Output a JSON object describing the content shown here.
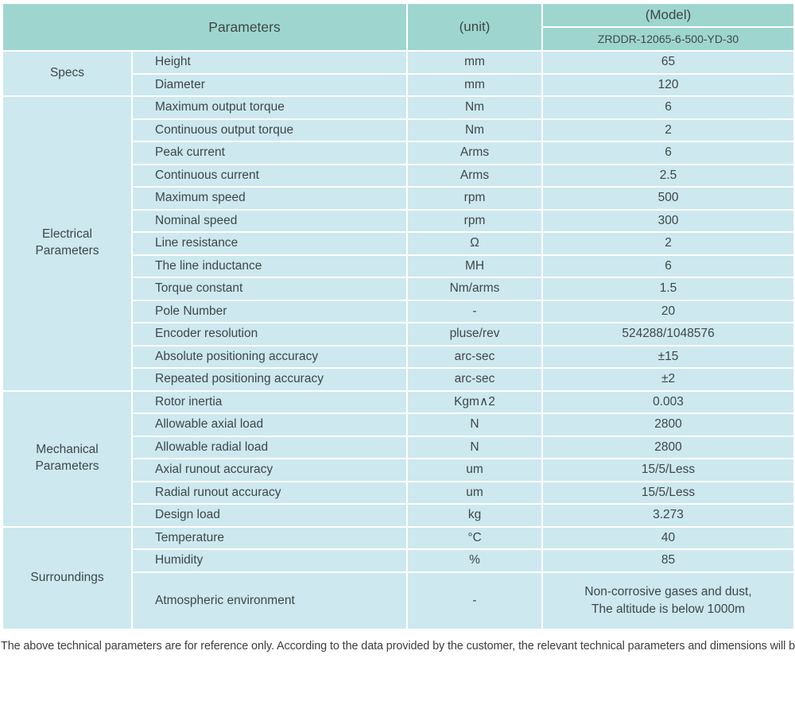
{
  "colors": {
    "header_bg": "#9ed6cf",
    "row_bg": "#cde8ef",
    "grid": "#ffffff",
    "text": "#3e4748"
  },
  "header": {
    "parameters_label": "Parameters",
    "unit_label": "(unit)",
    "model_label": "(Model)",
    "model_value": "ZRDDR-12065-6-500-YD-30"
  },
  "sections": [
    {
      "group": "Specs",
      "rows": [
        {
          "param": "Height",
          "unit": "mm",
          "value": "65"
        },
        {
          "param": "Diameter",
          "unit": "mm",
          "value": "120"
        }
      ]
    },
    {
      "group": "Electrical\nParameters",
      "rows": [
        {
          "param": "Maximum output torque",
          "unit": "Nm",
          "value": "6"
        },
        {
          "param": "Continuous output torque",
          "unit": "Nm",
          "value": "2"
        },
        {
          "param": "Peak current",
          "unit": "Arms",
          "value": "6"
        },
        {
          "param": "Continuous current",
          "unit": "Arms",
          "value": "2.5"
        },
        {
          "param": "Maximum speed",
          "unit": "rpm",
          "value": "500"
        },
        {
          "param": "Nominal speed",
          "unit": "rpm",
          "value": "300"
        },
        {
          "param": "Line resistance",
          "unit": "Ω",
          "value": "2"
        },
        {
          "param": "The line inductance",
          "unit": "MH",
          "value": "6"
        },
        {
          "param": "Torque constant",
          "unit": "Nm/arms",
          "value": "1.5"
        },
        {
          "param": "Pole Number",
          "unit": "-",
          "value": "20"
        },
        {
          "param": "Encoder resolution",
          "unit": "pluse/rev",
          "value": "524288/1048576"
        },
        {
          "param": "Absolute positioning accuracy",
          "unit": "arc-sec",
          "value": "±15"
        },
        {
          "param": "Repeated positioning accuracy",
          "unit": "arc-sec",
          "value": "±2"
        }
      ]
    },
    {
      "group": "Mechanical\nParameters",
      "rows": [
        {
          "param": "Rotor inertia",
          "unit": "Kgm∧2",
          "value": "0.003"
        },
        {
          "param": "Allowable axial load",
          "unit": "N",
          "value": "2800"
        },
        {
          "param": "Allowable radial load",
          "unit": "N",
          "value": "2800"
        },
        {
          "param": "Axial runout accuracy",
          "unit": "um",
          "value": "15/5/Less"
        },
        {
          "param": "Radial runout accuracy",
          "unit": "um",
          "value": "15/5/Less"
        },
        {
          "param": "Design load",
          "unit": "kg",
          "value": "3.273"
        }
      ]
    },
    {
      "group": "Surroundings",
      "rows": [
        {
          "param": "Temperature",
          "unit": "°C",
          "value": "40"
        },
        {
          "param": "Humidity",
          "unit": "%",
          "value": "85"
        },
        {
          "param": "Atmospheric environment",
          "unit": "-",
          "value": "Non-corrosive gases and dust,\nThe altitude is below 1000m"
        }
      ]
    }
  ],
  "footer": {
    "note": "The above technical parameters are for reference only. According to the data provided by the customer, the relevant technical parameters and dimensions will be issued."
  }
}
